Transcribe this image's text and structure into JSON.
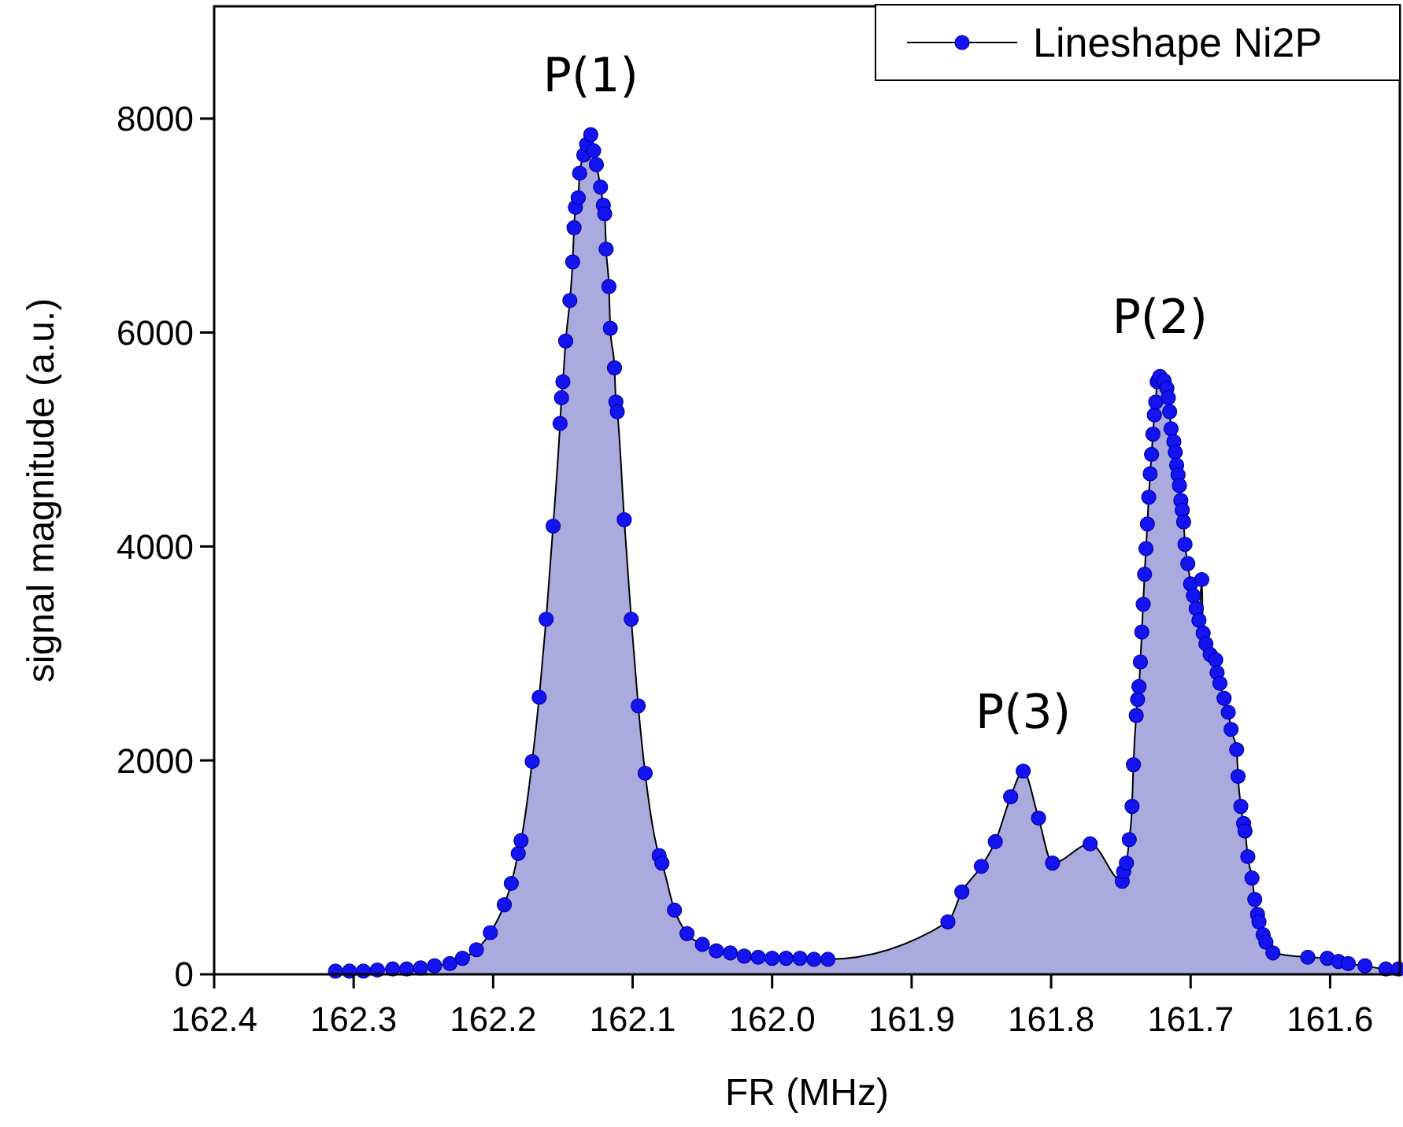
{
  "chart_data": {
    "type": "area",
    "xlabel": "FR (MHz)",
    "ylabel": "signal magnitude (a.u.)",
    "xlim": [
      162.4,
      161.55
    ],
    "ylim": [
      0,
      9050
    ],
    "xticks": [
      {
        "value": 162.4,
        "label": "162.4"
      },
      {
        "value": 162.3,
        "label": "162.3"
      },
      {
        "value": 162.2,
        "label": "162.2"
      },
      {
        "value": 162.1,
        "label": "162.1"
      },
      {
        "value": 162.0,
        "label": "162.0"
      },
      {
        "value": 161.9,
        "label": "161.9"
      },
      {
        "value": 161.8,
        "label": "161.8"
      },
      {
        "value": 161.7,
        "label": "161.7"
      },
      {
        "value": 161.6,
        "label": "161.6"
      }
    ],
    "yticks": [
      0,
      2000,
      4000,
      6000,
      8000
    ],
    "grid": false,
    "legend": "top right",
    "marker": "circle",
    "line_style": "solid",
    "annotations": [
      {
        "text": "P(1)",
        "x": 162.13,
        "y": 7850
      },
      {
        "text": "P(2)",
        "x": 161.722,
        "y": 5590
      },
      {
        "text": "P(3)",
        "x": 161.82,
        "y": 1900
      }
    ],
    "series": [
      {
        "name": "Lineshape Ni2P",
        "color": "#1414f0",
        "x": [
          162.313,
          162.303,
          162.293,
          162.283,
          162.272,
          162.262,
          162.252,
          162.242,
          162.231,
          162.222,
          162.212,
          162.202,
          162.192,
          162.187,
          162.182,
          162.18,
          162.172,
          162.167,
          162.162,
          162.157,
          162.152,
          162.151,
          162.15,
          162.148,
          162.145,
          162.143,
          162.142,
          162.141,
          162.139,
          162.138,
          162.135,
          162.133,
          162.13,
          162.128,
          162.126,
          162.123,
          162.121,
          162.12,
          162.119,
          162.117,
          162.116,
          162.113,
          162.112,
          162.111,
          162.106,
          162.101,
          162.096,
          162.091,
          162.081,
          162.079,
          162.07,
          162.061,
          162.05,
          162.04,
          162.03,
          162.02,
          162.01,
          162.0,
          161.99,
          161.98,
          161.97,
          161.96,
          161.874,
          161.864,
          161.85,
          161.84,
          161.829,
          161.82,
          161.809,
          161.799,
          161.772,
          161.749,
          161.748,
          161.746,
          161.744,
          161.742,
          161.741,
          161.739,
          161.738,
          161.737,
          161.736,
          161.735,
          161.734,
          161.733,
          161.732,
          161.731,
          161.73,
          161.729,
          161.728,
          161.727,
          161.726,
          161.725,
          161.724,
          161.723,
          161.722,
          161.719,
          161.717,
          161.716,
          161.715,
          161.714,
          161.712,
          161.711,
          161.71,
          161.709,
          161.708,
          161.707,
          161.706,
          161.705,
          161.704,
          161.702,
          161.7,
          161.698,
          161.696,
          161.694,
          161.692,
          161.691,
          161.689,
          161.686,
          161.682,
          161.681,
          161.679,
          161.676,
          161.673,
          161.671,
          161.667,
          161.666,
          161.664,
          161.662,
          161.661,
          161.659,
          161.656,
          161.654,
          161.652,
          161.651,
          161.648,
          161.646,
          161.641,
          161.616,
          161.602,
          161.594,
          161.587,
          161.575,
          161.56,
          161.551
        ],
        "values": [
          30,
          30,
          30,
          40,
          50,
          50,
          60,
          80,
          100,
          150,
          230,
          390,
          650,
          850,
          1130,
          1250,
          1990,
          2590,
          3320,
          4190,
          5150,
          5390,
          5540,
          5920,
          6300,
          6660,
          6980,
          7170,
          7260,
          7490,
          7660,
          7760,
          7850,
          7700,
          7570,
          7360,
          7190,
          7110,
          6780,
          6430,
          6040,
          5670,
          5350,
          5260,
          4250,
          3320,
          2510,
          1880,
          1110,
          1040,
          600,
          380,
          280,
          220,
          200,
          170,
          160,
          150,
          150,
          150,
          140,
          140,
          490,
          770,
          1010,
          1240,
          1660,
          1900,
          1460,
          1040,
          1220,
          870,
          960,
          1040,
          1260,
          1570,
          1960,
          2420,
          2570,
          2690,
          2920,
          3200,
          3460,
          3740,
          3980,
          4210,
          4460,
          4680,
          4860,
          5050,
          5230,
          5350,
          5540,
          5560,
          5590,
          5550,
          5480,
          5390,
          5260,
          5100,
          4980,
          4880,
          4760,
          4670,
          4570,
          4430,
          4340,
          4230,
          4020,
          3840,
          3650,
          3540,
          3420,
          3310,
          3690,
          3190,
          3090,
          2990,
          2940,
          2820,
          2720,
          2580,
          2450,
          2290,
          2100,
          1850,
          1570,
          1410,
          1340,
          1100,
          900,
          700,
          560,
          490,
          370,
          300,
          200,
          160,
          150,
          120,
          100,
          80,
          50,
          50
        ]
      }
    ]
  }
}
